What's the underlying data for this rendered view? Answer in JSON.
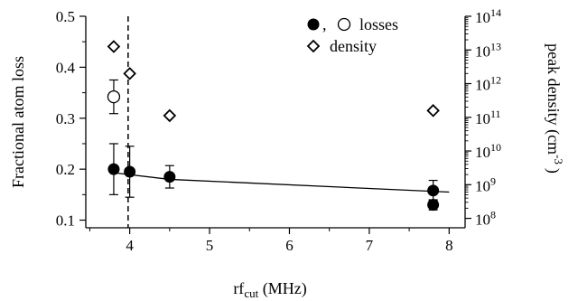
{
  "chart_data": {
    "type": "scatter",
    "xlabel": "rf",
    "xlabel_sub": "cut",
    "xlabel_unit": " (MHz)",
    "ylabel": "Fractional atom loss",
    "y2label": "peak density (cm",
    "y2label_exp": "-3",
    "y2label_close": ")",
    "xlim": [
      3.45,
      8.2
    ],
    "ylim": [
      0.085,
      0.5
    ],
    "y2lim_log10": [
      7.72,
      14
    ],
    "x_ticks": [
      4,
      5,
      6,
      7,
      8
    ],
    "y_ticks": [
      0.1,
      0.2,
      0.3,
      0.4,
      0.5
    ],
    "y_tick_labels": [
      "0.1",
      "0.2",
      "0.3",
      "0.4",
      "0.5"
    ],
    "y2_tick_exponents": [
      8,
      9,
      10,
      11,
      12,
      13,
      14
    ],
    "y2_tick_base": "10",
    "vline_x": 3.98,
    "series": [
      {
        "marker": "filled-circle",
        "points": [
          {
            "x": 3.8,
            "y": 0.2,
            "err": 0.05
          },
          {
            "x": 4.0,
            "y": 0.195,
            "err": 0.05
          },
          {
            "x": 4.5,
            "y": 0.185,
            "err": 0.022
          },
          {
            "x": 7.8,
            "y": 0.158,
            "err": 0.02
          },
          {
            "x": 7.8,
            "y": 0.13,
            "err": 0.01
          }
        ]
      },
      {
        "marker": "open-circle",
        "points": [
          {
            "x": 3.8,
            "y": 0.342,
            "err": 0.033
          }
        ]
      },
      {
        "name": "density",
        "marker": "open-diamond",
        "axis": "right",
        "points": [
          {
            "x": 3.8,
            "log10_y": 13.1
          },
          {
            "x": 4.0,
            "log10_y": 12.3
          },
          {
            "x": 4.5,
            "log10_y": 11.05
          },
          {
            "x": 7.8,
            "log10_y": 11.2
          }
        ]
      }
    ],
    "fit_line": [
      {
        "x": 3.8,
        "y": 0.193
      },
      {
        "x": 4.5,
        "y": 0.18
      },
      {
        "x": 8.0,
        "y": 0.155
      }
    ],
    "legend": {
      "placement": "top-right",
      "entries": [
        {
          "label": "losses",
          "separator": ","
        },
        {
          "label": "density"
        }
      ]
    }
  }
}
